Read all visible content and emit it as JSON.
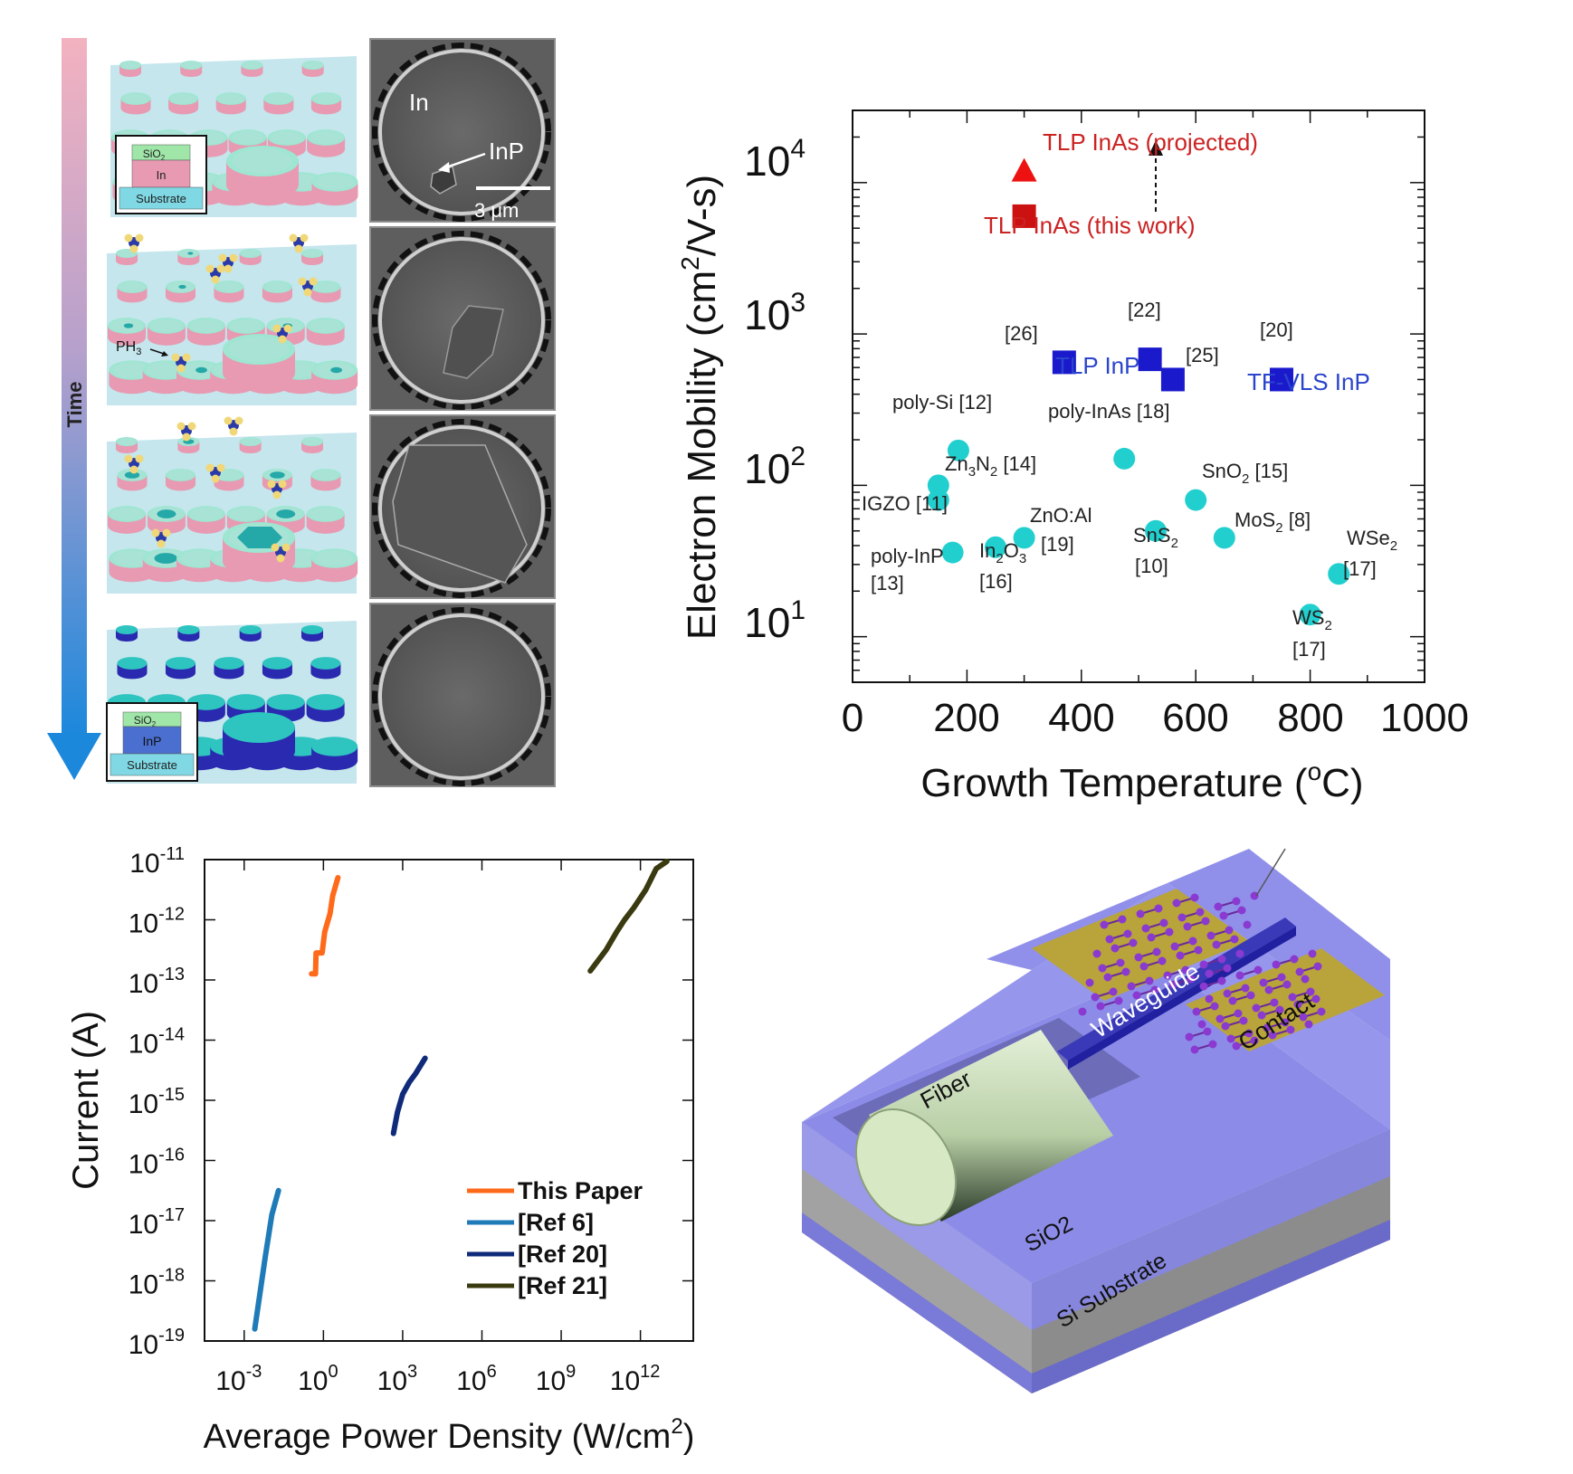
{
  "colors": {
    "cyan": "#22cfcf",
    "blue": "#1a1acc",
    "red_square": "#cc1111",
    "red_triangle": "#ee1111",
    "blue_text": "#2a44cc",
    "red_text": "#cc2222",
    "this_paper": "#ff6a1a",
    "ref6": "#1f7ab8",
    "ref20": "#102a7a",
    "ref21": "#3a3a10",
    "surface": "#c4e6ec",
    "disk_in": "#e79ab2",
    "disk_top": "#9fe6d2",
    "disk_inp": "#2a2ab0",
    "disk_inp_top": "#2ec4c0",
    "sem_bg": "#5a5a5a",
    "sem_disk": "#474747",
    "chip_top": "#8c8ce8",
    "chip_side": "#a8a8a8",
    "gold": "#b8a43a",
    "fiber": "#cfe3bf"
  },
  "panel_a": {
    "time_label": "Time",
    "inset1": {
      "layers": [
        "SiO",
        "In",
        "Substrate"
      ],
      "sub": "2"
    },
    "inset4": {
      "layers": [
        "SiO",
        "InP",
        "Substrate"
      ],
      "sub": "2"
    },
    "ph3": {
      "text": "PH",
      "sub": "3"
    },
    "sem_labels": {
      "in": "In",
      "inp": "InP",
      "scale": "3 μm"
    }
  },
  "chart_data": [
    {
      "type": "scatter",
      "xlabel": "Growth Temperature (oC)",
      "ylabel": "Electron Mobility (cm2/V-s)",
      "xlim": [
        0,
        1000
      ],
      "ylim": [
        5,
        30000
      ],
      "yscale": "log",
      "xticks": [
        "0",
        "200",
        "400",
        "600",
        "800",
        "1000"
      ],
      "yticks": [
        {
          "base": "10",
          "exp": "1"
        },
        {
          "base": "10",
          "exp": "2"
        },
        {
          "base": "10",
          "exp": "3"
        },
        {
          "base": "10",
          "exp": "4"
        }
      ],
      "series": [
        {
          "marker": "triangle",
          "color": "#ee1111",
          "points": [
            {
              "x": 300,
              "y": 12000,
              "label": "TLP InAs (projected)"
            }
          ]
        },
        {
          "marker": "square",
          "color": "#cc1111",
          "points": [
            {
              "x": 300,
              "y": 6000,
              "label": "TLP InAs (this work)"
            }
          ]
        },
        {
          "marker": "square",
          "color": "#1a1acc",
          "points": [
            {
              "x": 370,
              "y": 650,
              "label": "[26]"
            },
            {
              "x": 520,
              "y": 680,
              "label": "[22]"
            },
            {
              "x": 560,
              "y": 500,
              "label": "[25]"
            },
            {
              "x": 750,
              "y": 500,
              "label": "[20]"
            }
          ]
        },
        {
          "marker": "circle",
          "color": "#22cfcf",
          "points": [
            {
              "x": 185,
              "y": 170,
              "label": "poly-Si [12]"
            },
            {
              "x": 150,
              "y": 100,
              "label": "Zn3N2 [14]"
            },
            {
              "x": 150,
              "y": 80,
              "label": "IGZO [11]"
            },
            {
              "x": 175,
              "y": 36,
              "label": "poly-InP [13]"
            },
            {
              "x": 250,
              "y": 39,
              "label": "In2O3 [16]"
            },
            {
              "x": 300,
              "y": 45,
              "label": "ZnO:Al [19]"
            },
            {
              "x": 475,
              "y": 150,
              "label": "poly-InAs [18]"
            },
            {
              "x": 530,
              "y": 50,
              "label": "SnS2 [10]"
            },
            {
              "x": 600,
              "y": 80,
              "label": "SnO2 [15]"
            },
            {
              "x": 650,
              "y": 45,
              "label": "MoS2 [8]"
            },
            {
              "x": 800,
              "y": 14,
              "label": "WS2 [17]"
            },
            {
              "x": 850,
              "y": 26,
              "label": "WSe2 [17]"
            }
          ]
        }
      ],
      "annotations": {
        "projected": "TLP InAs (projected)",
        "this_work": "TLP InAs (this work)",
        "tlp_inp": "TLP InP",
        "tf_vls": "TF-VLS InP",
        "ref22": "[22]",
        "ref26": "[26]",
        "ref25": "[25]",
        "ref20": "[20]",
        "poly_si": "poly-Si [12]",
        "zn3n2_a": "Zn",
        "zn3n2_b": "3",
        "zn3n2_c": "N",
        "zn3n2_d": "2",
        "zn3n2_e": " [14]",
        "igzo": "IGZO [11]",
        "poly_inp_1": "poly-InP",
        "poly_inp_2": "[13]",
        "in2o3_a": "In",
        "in2o3_b": "2",
        "in2o3_c": "O",
        "in2o3_d": "3",
        "in2o3_ref": "[16]",
        "znoal": "ZnO:Al",
        "znoal_ref": "[19]",
        "poly_inas": "poly-InAs [18]",
        "sns2_a": "SnS",
        "sns2_b": "2",
        "sns2_ref": "[10]",
        "sno2_a": "SnO",
        "sno2_b": "2",
        "sno2_c": " [15]",
        "mos2_a": "MoS",
        "mos2_b": "2",
        "mos2_c": " [8]",
        "wse2_a": "WSe",
        "wse2_b": "2",
        "wse2_ref": "[17]",
        "ws2_a": "WS",
        "ws2_b": "2",
        "ws2_ref": "[17]"
      }
    },
    {
      "type": "line",
      "xlabel": "Average Power Density (W/cm2)",
      "ylabel": "Current (A)",
      "xscale": "log",
      "yscale": "log",
      "xlim_exp": [
        -4.5,
        14
      ],
      "ylim_exp": [
        -19,
        -11
      ],
      "xticks": [
        {
          "base": "10",
          "exp": "-3"
        },
        {
          "base": "10",
          "exp": "0"
        },
        {
          "base": "10",
          "exp": "3"
        },
        {
          "base": "10",
          "exp": "6"
        },
        {
          "base": "10",
          "exp": "9"
        },
        {
          "base": "10",
          "exp": "12"
        }
      ],
      "yticks": [
        {
          "base": "10",
          "exp": "-19"
        },
        {
          "base": "10",
          "exp": "-18"
        },
        {
          "base": "10",
          "exp": "-17"
        },
        {
          "base": "10",
          "exp": "-16"
        },
        {
          "base": "10",
          "exp": "-15"
        },
        {
          "base": "10",
          "exp": "-14"
        },
        {
          "base": "10",
          "exp": "-13"
        },
        {
          "base": "10",
          "exp": "-12"
        },
        {
          "base": "10",
          "exp": "-11"
        }
      ],
      "series": [
        {
          "name": "This Paper",
          "color": "#ff6a1a",
          "points": [
            [
              -0.45,
              -12.9
            ],
            [
              -0.3,
              -12.9
            ],
            [
              -0.28,
              -12.55
            ],
            [
              -0.05,
              -12.55
            ],
            [
              0.05,
              -12.2
            ],
            [
              0.25,
              -11.9
            ],
            [
              0.35,
              -11.6
            ],
            [
              0.55,
              -11.3
            ]
          ]
        },
        {
          "name": "[Ref 6]",
          "color": "#1f7ab8",
          "points": [
            [
              -2.6,
              -18.8
            ],
            [
              -2.4,
              -18.2
            ],
            [
              -2.2,
              -17.6
            ],
            [
              -1.95,
              -16.9
            ],
            [
              -1.7,
              -16.5
            ]
          ]
        },
        {
          "name": "[Ref 20]",
          "color": "#102a7a",
          "points": [
            [
              2.65,
              -15.55
            ],
            [
              2.8,
              -15.2
            ],
            [
              3.0,
              -14.9
            ],
            [
              3.25,
              -14.7
            ],
            [
              3.5,
              -14.55
            ],
            [
              3.85,
              -14.3
            ]
          ]
        },
        {
          "name": "[Ref 21]",
          "color": "#3a3a10",
          "points": [
            [
              10.1,
              -12.85
            ],
            [
              10.7,
              -12.5
            ],
            [
              11.1,
              -12.2
            ],
            [
              11.4,
              -12.0
            ],
            [
              11.75,
              -11.8
            ],
            [
              12.2,
              -11.5
            ],
            [
              12.6,
              -11.15
            ],
            [
              13.0,
              -10.9
            ]
          ]
        }
      ]
    }
  ],
  "panel_d": {
    "fiber": "Fiber",
    "waveguide": "Waveguide",
    "contact": "Contact",
    "sio2": "SiO2",
    "substrate": "Si Substrate"
  }
}
